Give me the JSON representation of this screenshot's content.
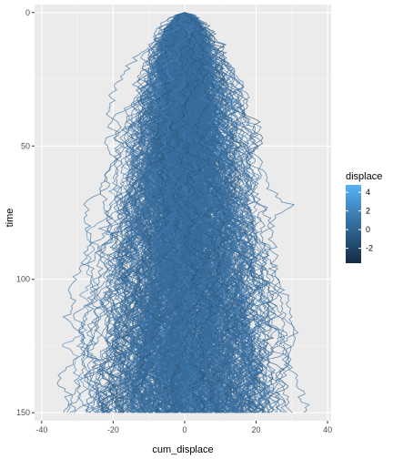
{
  "chart_data": {
    "type": "line",
    "description_of_series": "Many random walks: cumulative displacement over time, colored by per-step displacement",
    "xlabel": "cum_displace",
    "ylabel": "time",
    "xlim": [
      -42,
      41
    ],
    "ylim": [
      -3,
      153
    ],
    "x_reversed": false,
    "y_reversed": true,
    "x_ticks": [
      -40,
      -20,
      0,
      20,
      40
    ],
    "y_ticks": [
      0,
      50,
      100,
      150
    ],
    "x_tick_labels": [
      "-40",
      "-20",
      "0",
      "20",
      "40"
    ],
    "y_tick_labels": [
      "0",
      "50",
      "100",
      "150"
    ],
    "n_walks": 500,
    "n_steps": 150,
    "x_range_at_end": [
      -40,
      38
    ],
    "panel_background": "#ebebeb",
    "grid_major_color": "#ffffff",
    "grid": true,
    "legend": {
      "title": "displace",
      "position": "right",
      "labels": [
        "4",
        "2",
        "0",
        "-2"
      ],
      "values": [
        4,
        2,
        0,
        -2
      ],
      "range": [
        -3.6,
        4.8
      ],
      "color_low": "#132B43",
      "color_high": "#56B1F7"
    }
  }
}
